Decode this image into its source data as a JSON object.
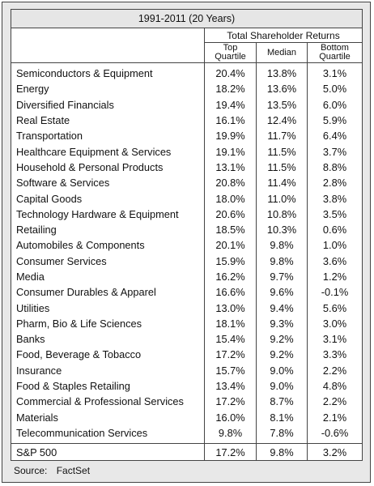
{
  "table": {
    "title": "1991-2011 (20 Years)",
    "group_header": "Total Shareholder Returns",
    "columns": [
      {
        "line1": "Top",
        "line2": "Quartile"
      },
      {
        "line1": "Median",
        "line2": ""
      },
      {
        "line1": "Bottom",
        "line2": "Quartile"
      }
    ],
    "rows": [
      {
        "name": "Semiconductors &  Equipment",
        "top": "20.4%",
        "median": "13.8%",
        "bottom": "3.1%"
      },
      {
        "name": "Energy",
        "top": "18.2%",
        "median": "13.6%",
        "bottom": "5.0%"
      },
      {
        "name": "Diversified Financials",
        "top": "19.4%",
        "median": "13.5%",
        "bottom": "6.0%"
      },
      {
        "name": "Real Estate",
        "top": "16.1%",
        "median": "12.4%",
        "bottom": "5.9%"
      },
      {
        "name": "Transportation",
        "top": "19.9%",
        "median": "11.7%",
        "bottom": "6.4%"
      },
      {
        "name": "Healthcare Equipment & Services",
        "top": "19.1%",
        "median": "11.5%",
        "bottom": "3.7%"
      },
      {
        "name": "Household & Personal Products",
        "top": "13.1%",
        "median": "11.5%",
        "bottom": "8.8%"
      },
      {
        "name": "Software & Services",
        "top": "20.8%",
        "median": "11.4%",
        "bottom": "2.8%"
      },
      {
        "name": "Capital Goods",
        "top": "18.0%",
        "median": "11.0%",
        "bottom": "3.8%"
      },
      {
        "name": "Technology Hardware & Equipment",
        "top": "20.6%",
        "median": "10.8%",
        "bottom": "3.5%"
      },
      {
        "name": "Retailing",
        "top": "18.5%",
        "median": "10.3%",
        "bottom": "0.6%"
      },
      {
        "name": "Automobiles & Components",
        "top": "20.1%",
        "median": "9.8%",
        "bottom": "1.0%"
      },
      {
        "name": "Consumer Services",
        "top": "15.9%",
        "median": "9.8%",
        "bottom": "3.6%"
      },
      {
        "name": "Media",
        "top": "16.2%",
        "median": "9.7%",
        "bottom": "1.2%"
      },
      {
        "name": "Consumer Durables & Apparel",
        "top": "16.6%",
        "median": "9.6%",
        "bottom": "-0.1%"
      },
      {
        "name": "Utilities",
        "top": "13.0%",
        "median": "9.4%",
        "bottom": "5.6%"
      },
      {
        "name": "Pharm, Bio & Life Sciences",
        "top": "18.1%",
        "median": "9.3%",
        "bottom": "3.0%"
      },
      {
        "name": "Banks",
        "top": "15.4%",
        "median": "9.2%",
        "bottom": "3.1%"
      },
      {
        "name": "Food, Beverage & Tobacco",
        "top": "17.2%",
        "median": "9.2%",
        "bottom": "3.3%"
      },
      {
        "name": "Insurance",
        "top": "15.7%",
        "median": "9.0%",
        "bottom": "2.2%"
      },
      {
        "name": "Food & Staples Retailing",
        "top": "13.4%",
        "median": "9.0%",
        "bottom": "4.8%"
      },
      {
        "name": "Commercial & Professional Services",
        "top": "17.2%",
        "median": "8.7%",
        "bottom": "2.2%"
      },
      {
        "name": "Materials",
        "top": "16.0%",
        "median": "8.1%",
        "bottom": "2.1%"
      },
      {
        "name": "Telecommunication Services",
        "top": "9.8%",
        "median": "7.8%",
        "bottom": "-0.6%"
      }
    ],
    "total": {
      "name": "S&P 500",
      "top": "17.2%",
      "median": "9.8%",
      "bottom": "3.2%"
    }
  },
  "source": {
    "label": "Source:",
    "value": "FactSet"
  }
}
